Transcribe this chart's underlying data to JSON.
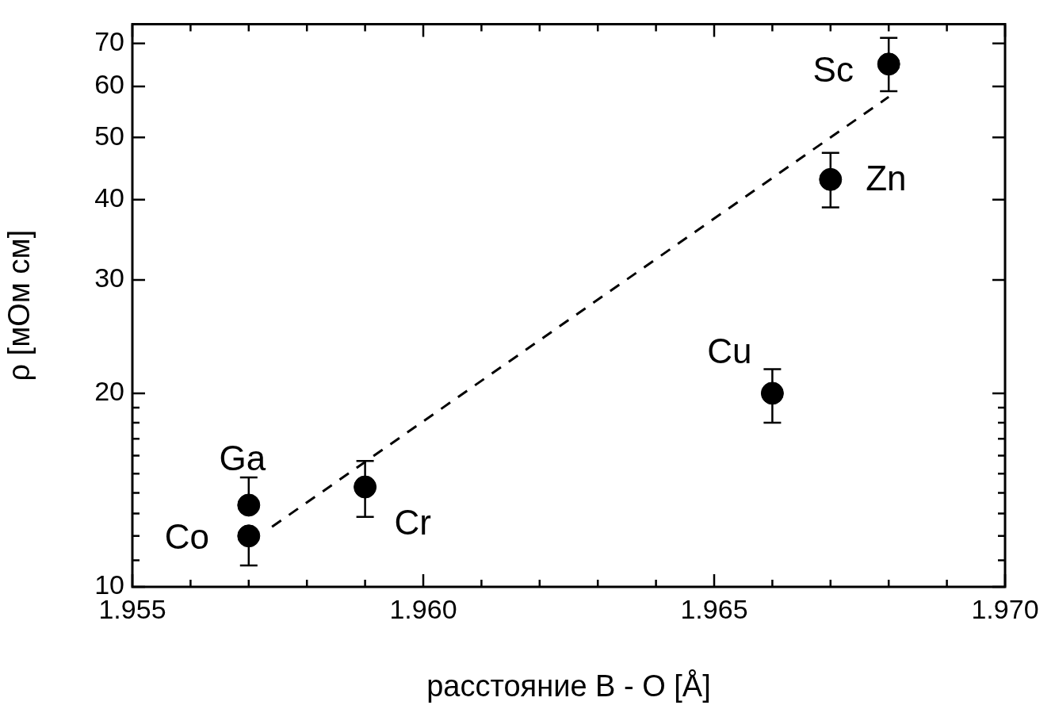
{
  "chart_data": {
    "type": "scatter",
    "xlabel": "расстояние B - O [Å]",
    "ylabel": "ρ [мОм см]",
    "log": "y",
    "marker": "circle",
    "xlim": [
      1.955,
      1.97
    ],
    "xticks": [
      1.955,
      {
        "value": 1.956,
        "label": null
      },
      {
        "value": 1.957,
        "label": null
      },
      {
        "value": 1.958,
        "label": null
      },
      {
        "value": 1.959,
        "label": null
      },
      {
        "value": 1.96,
        "label": "1.960"
      },
      {
        "value": 1.961,
        "label": null
      },
      {
        "value": 1.962,
        "label": null
      },
      {
        "value": 1.963,
        "label": null
      },
      {
        "value": 1.964,
        "label": null
      },
      1.965,
      {
        "value": 1.966,
        "label": null
      },
      {
        "value": 1.967,
        "label": null
      },
      {
        "value": 1.968,
        "label": null
      },
      {
        "value": 1.969,
        "label": null
      },
      {
        "value": 1.97,
        "label": "1.970"
      }
    ],
    "ylim": [
      10,
      75
    ],
    "yticks": [
      10,
      {
        "value": 11,
        "label": null
      },
      {
        "value": 12,
        "label": null
      },
      {
        "value": 13,
        "label": null
      },
      {
        "value": 14,
        "label": null
      },
      {
        "value": 15,
        "label": null
      },
      {
        "value": 16,
        "label": null
      },
      {
        "value": 17,
        "label": null
      },
      {
        "value": 18,
        "label": null
      },
      {
        "value": 19,
        "label": null
      },
      20,
      30,
      40,
      50,
      60,
      70
    ],
    "series": [
      {
        "color": "#000000",
        "x": [
          1.957,
          1.957,
          1.959,
          1.966,
          1.967,
          1.968
        ],
        "values": [
          12,
          13.4,
          14.3,
          20,
          43,
          65
        ],
        "errors": [
          [
            10.8,
            12
          ],
          [
            13.4,
            14.8
          ],
          [
            12.85,
            15.7
          ],
          [
            18,
            21.8
          ],
          [
            38.9,
            47.3
          ],
          [
            59,
            71.4
          ]
        ]
      },
      {
        "type": "line",
        "color": "#000000",
        "line_style": "dashed",
        "marker": "none",
        "x": [
          1.9574,
          1.968
        ],
        "values": [
          12.4,
          57.8
        ]
      }
    ],
    "annotations": [
      {
        "text": "Co",
        "x": 1.957,
        "y": 12
      },
      {
        "text": "Ga",
        "x": 1.957,
        "y": 13.4
      },
      {
        "text": "Cr",
        "x": 1.959,
        "y": 14.3
      },
      {
        "text": "Cu",
        "x": 1.966,
        "y": 20
      },
      {
        "text": "Zn",
        "x": 1.967,
        "y": 43
      },
      {
        "text": "Sc",
        "x": 1.968,
        "y": 65
      }
    ]
  }
}
